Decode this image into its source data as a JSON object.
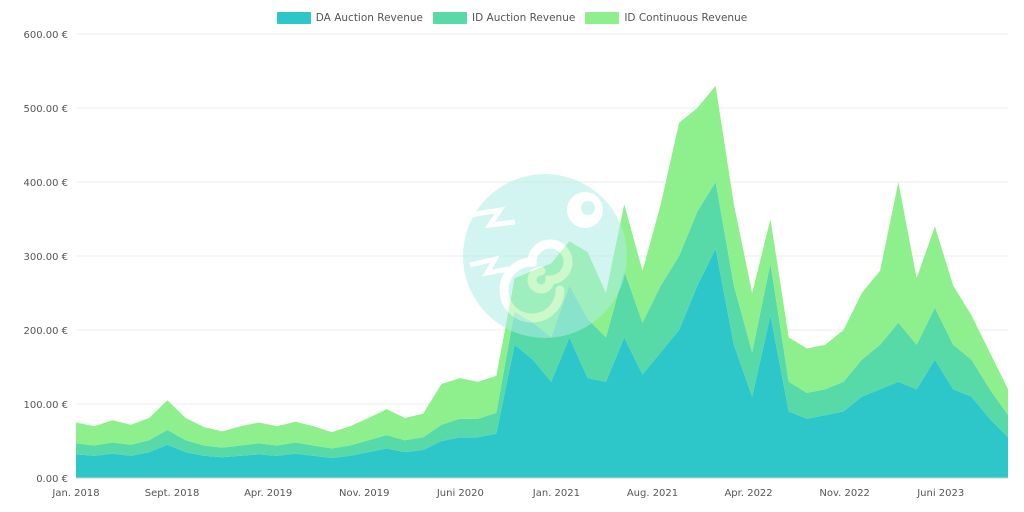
{
  "chart_data": {
    "type": "area",
    "stacked": true,
    "legend_position": "top-center",
    "grid": true,
    "ylim": [
      0,
      600
    ],
    "y_ticks": [
      "0.00 €",
      "100.00 €",
      "200.00 €",
      "300.00 €",
      "400.00 €",
      "500.00 €",
      "600.00 €"
    ],
    "x_ticks": [
      "Jan. 2018",
      "Sept. 2018",
      "Apr. 2019",
      "Nov. 2019",
      "Juni 2020",
      "Jan. 2021",
      "Aug. 2021",
      "Apr. 2022",
      "Nov. 2022",
      "Juni 2023"
    ],
    "x": [
      "2018-01",
      "2018-03",
      "2018-05",
      "2018-07",
      "2018-09",
      "2018-10",
      "2018-12",
      "2019-02",
      "2019-04",
      "2019-06",
      "2019-08",
      "2019-10",
      "2019-12",
      "2020-02",
      "2020-04",
      "2020-06",
      "2020-08",
      "2020-10",
      "2020-12",
      "2021-02",
      "2021-04",
      "2021-06",
      "2021-07",
      "2021-08",
      "2021-09",
      "2021-10",
      "2021-11",
      "2021-12",
      "2022-01",
      "2022-02",
      "2022-03",
      "2022-04",
      "2022-05",
      "2022-06",
      "2022-07",
      "2022-08",
      "2022-09",
      "2022-10",
      "2022-11",
      "2022-12",
      "2023-01",
      "2023-02",
      "2023-03",
      "2023-04",
      "2023-05",
      "2023-06",
      "2023-07",
      "2023-08",
      "2023-09",
      "2023-10",
      "2023-11",
      "2023-12"
    ],
    "series": [
      {
        "name": "DA Auction Revenue",
        "color": "#2ec7c9",
        "values": [
          32,
          30,
          33,
          30,
          35,
          45,
          35,
          30,
          28,
          30,
          32,
          30,
          33,
          30,
          27,
          30,
          35,
          40,
          35,
          38,
          50,
          55,
          55,
          60,
          180,
          160,
          130,
          190,
          135,
          130,
          190,
          140,
          170,
          200,
          260,
          310,
          180,
          110,
          220,
          90,
          80,
          85,
          90,
          110,
          120,
          130,
          120,
          160,
          120,
          110,
          80,
          55
        ]
      },
      {
        "name": "ID Auction Revenue",
        "color": "#58d9a8",
        "values": [
          15,
          14,
          15,
          15,
          16,
          20,
          16,
          14,
          13,
          14,
          15,
          14,
          15,
          14,
          13,
          14,
          16,
          18,
          16,
          17,
          22,
          25,
          25,
          28,
          45,
          50,
          60,
          70,
          80,
          60,
          90,
          70,
          90,
          100,
          100,
          90,
          80,
          60,
          70,
          40,
          35,
          35,
          40,
          50,
          60,
          80,
          60,
          70,
          60,
          50,
          40,
          30
        ]
      },
      {
        "name": "ID Continuous Revenue",
        "color": "#8ef08c",
        "values": [
          28,
          26,
          30,
          27,
          30,
          40,
          30,
          25,
          22,
          26,
          28,
          26,
          28,
          26,
          22,
          26,
          30,
          35,
          30,
          32,
          55,
          55,
          50,
          50,
          45,
          70,
          100,
          60,
          90,
          60,
          90,
          70,
          110,
          180,
          140,
          130,
          110,
          80,
          60,
          60,
          60,
          60,
          70,
          90,
          100,
          190,
          90,
          110,
          80,
          60,
          50,
          35
        ]
      }
    ]
  },
  "watermark": "chameleon-logo"
}
